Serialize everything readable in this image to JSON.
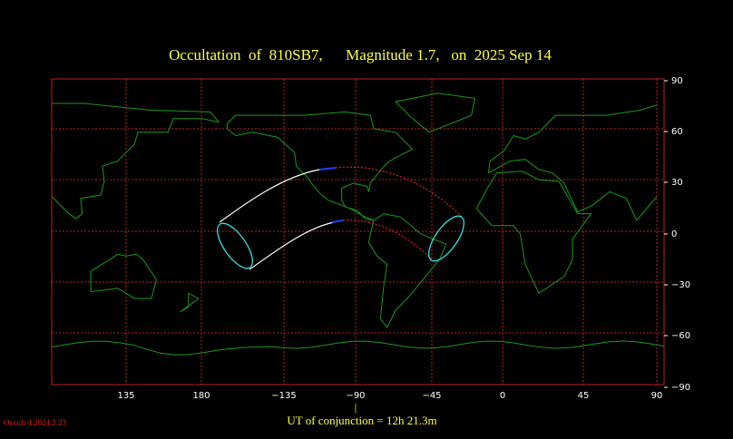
{
  "title": "Occultation  of  810SB7,      Magnitude 1.7,   on  2025 Sep 14",
  "longitude_labels": [
    "135",
    "180",
    "−135",
    "−90",
    "−45",
    "0",
    "45",
    "90"
  ],
  "latitude_labels": [
    "90",
    "60",
    "30",
    "0",
    "−30",
    "−60",
    "−90"
  ],
  "conjunction_marker": "|",
  "conjunction_text": "UT of conjunction = 12h 21.3m",
  "version": "Occult 4.2024.2.23"
}
